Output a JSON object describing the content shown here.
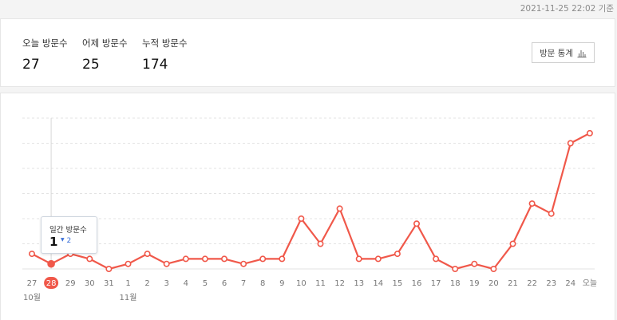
{
  "header": {
    "timestamp": "2021-11-25 22:02 기준"
  },
  "stats": {
    "today_label": "오늘 방문수",
    "today_value": "27",
    "yesterday_label": "어제 방문수",
    "yesterday_value": "25",
    "total_label": "누적 방문수",
    "total_value": "174",
    "button_label": "방문 통계"
  },
  "tooltip": {
    "label": "일간 방문수",
    "value": "1",
    "change": "2",
    "change_arrow": "▼"
  },
  "colors": {
    "line": "#f0584a",
    "highlight": "#f0584a",
    "grid": "#e3e3e3",
    "change": "#3a6fd8"
  },
  "chart_data": {
    "type": "line",
    "categories": [
      "27",
      "28",
      "29",
      "30",
      "31",
      "1",
      "2",
      "3",
      "4",
      "5",
      "6",
      "7",
      "8",
      "9",
      "10",
      "11",
      "12",
      "13",
      "14",
      "15",
      "16",
      "17",
      "18",
      "19",
      "20",
      "21",
      "22",
      "23",
      "24",
      "오늘"
    ],
    "month_labels": [
      {
        "index": 0,
        "label": "10월"
      },
      {
        "index": 5,
        "label": "11월"
      }
    ],
    "series": [
      {
        "values": [
          3,
          1,
          3,
          2,
          0,
          1,
          3,
          1,
          2,
          2,
          2,
          1,
          2,
          2,
          10,
          5,
          12,
          2,
          2,
          3,
          9,
          2,
          0,
          1,
          0,
          5,
          13,
          11,
          25,
          27
        ]
      }
    ],
    "ylim": [
      0,
      30
    ],
    "highlight_index": 1,
    "grid": true
  }
}
